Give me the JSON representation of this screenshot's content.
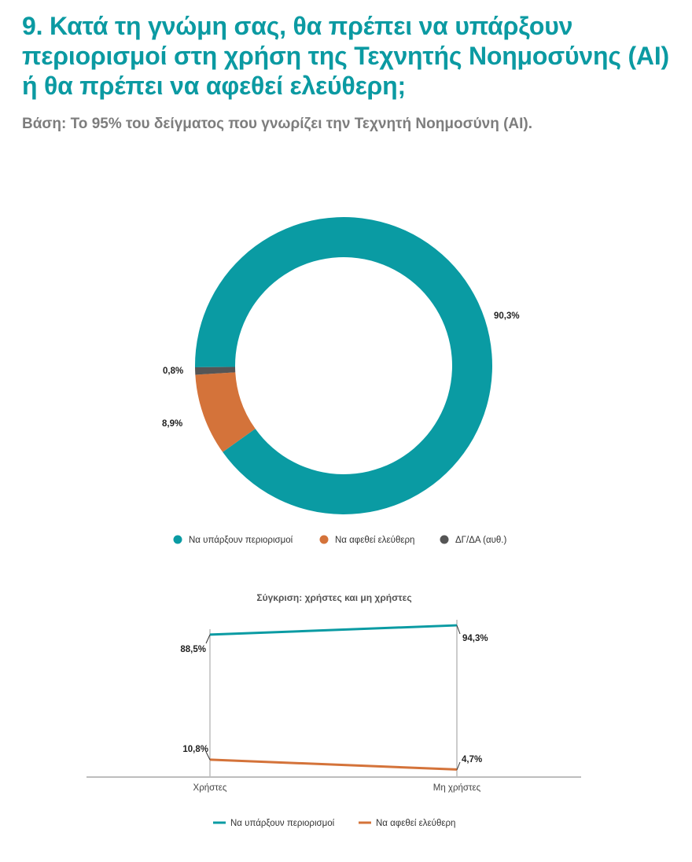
{
  "header": {
    "title": "9. Κατά τη γνώμη σας, θα πρέπει να υπάρξουν περιορισμοί στη χρήση της Τεχνητής Νοημοσύνης (AI) ή θα πρέπει να αφεθεί ελεύθερη;",
    "subtitle": "Βάση: Το 95% του δείγματος που γνωρίζει την Τεχνητή Νοημοσύνη (AI)."
  },
  "colors": {
    "teal": "#0a9ba3",
    "orange": "#d4733a",
    "gray": "#555555",
    "title": "#0b9aa2",
    "axis": "#bdbdbd"
  },
  "chart_data": [
    {
      "type": "pie",
      "variant": "donut",
      "title": "",
      "categories": [
        "Να υπάρξουν περιοριορισμοί",
        "Να αφεθεί ελεύθερη",
        "ΔΓ/ΔΑ (αυθ.)"
      ],
      "values": [
        90.3,
        8.9,
        0.8
      ],
      "labels": [
        "90,3%",
        "8,9%",
        "0,8%"
      ],
      "colors": [
        "#0a9ba3",
        "#d4733a",
        "#555555"
      ],
      "legend": [
        "Να υπάρξουν περιορισμοί",
        "Να αφεθεί ελεύθερη",
        "ΔΓ/ΔΑ (αυθ.)"
      ],
      "legend_position": "bottom"
    },
    {
      "type": "line",
      "title": "Σύγκριση: χρήστες  και μη χρήστες",
      "categories": [
        "Χρήστες",
        "Μη χρήστες"
      ],
      "series": [
        {
          "name": "Να υπάρξουν περιορισμοί",
          "values": [
            88.5,
            94.3
          ],
          "labels": [
            "88,5%",
            "94,3%"
          ],
          "color": "#0a9ba3"
        },
        {
          "name": "Να αφεθεί ελεύθερη",
          "values": [
            10.8,
            4.7
          ],
          "labels": [
            "10,8%",
            "4,7%"
          ],
          "color": "#d4733a"
        }
      ],
      "xlabel": "",
      "ylabel": "",
      "ylim": [
        0,
        100
      ],
      "grid": false,
      "legend_position": "bottom"
    }
  ]
}
